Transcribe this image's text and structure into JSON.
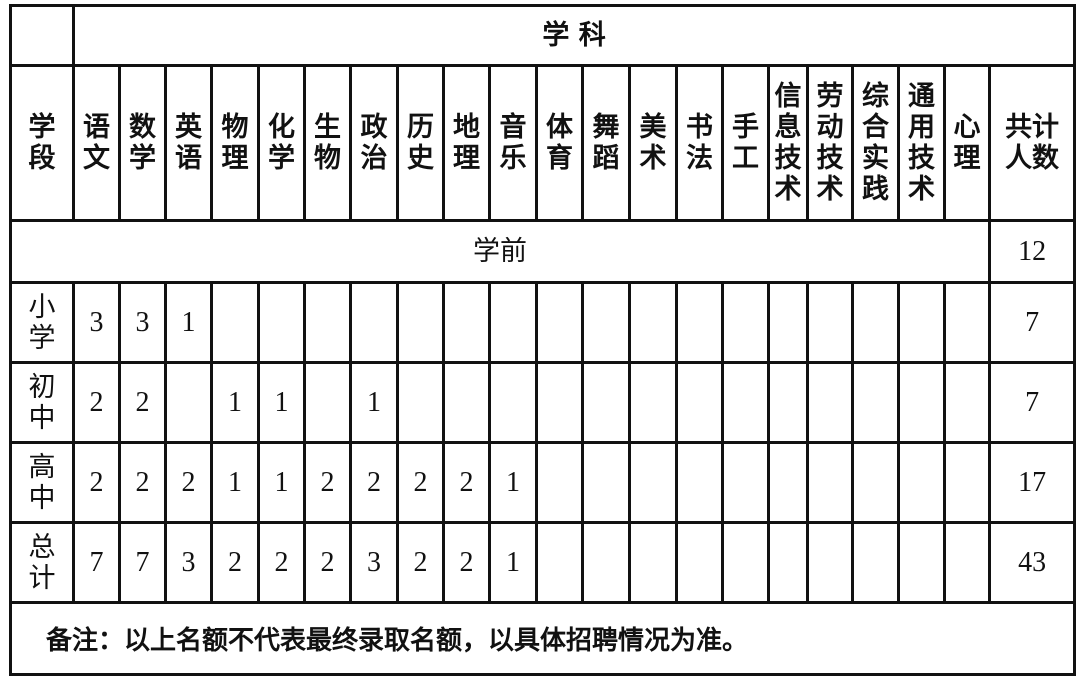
{
  "title": "学 科",
  "stage_header": "学段",
  "total_header": "共计人数",
  "subjects": [
    "语文",
    "数学",
    "英语",
    "物理",
    "化学",
    "生物",
    "政治",
    "历史",
    "地理",
    "音乐",
    "体育",
    "舞蹈",
    "美术",
    "书法",
    "手工",
    "信息技术",
    "劳动技术",
    "综合实践",
    "通用技术",
    "心理"
  ],
  "preschool": {
    "label": "学前",
    "total": "12"
  },
  "rows": [
    {
      "stage": "小学",
      "cells": [
        "3",
        "3",
        "1",
        "",
        "",
        "",
        "",
        "",
        "",
        "",
        "",
        "",
        "",
        "",
        "",
        "",
        "",
        "",
        "",
        ""
      ],
      "total": "7"
    },
    {
      "stage": "初中",
      "cells": [
        "2",
        "2",
        "",
        "1",
        "1",
        "",
        "1",
        "",
        "",
        "",
        "",
        "",
        "",
        "",
        "",
        "",
        "",
        "",
        "",
        ""
      ],
      "total": "7"
    },
    {
      "stage": "高中",
      "cells": [
        "2",
        "2",
        "2",
        "1",
        "1",
        "2",
        "2",
        "2",
        "2",
        "1",
        "",
        "",
        "",
        "",
        "",
        "",
        "",
        "",
        "",
        ""
      ],
      "total": "17"
    },
    {
      "stage": "总计",
      "cells": [
        "7",
        "7",
        "3",
        "2",
        "2",
        "2",
        "3",
        "2",
        "2",
        "1",
        "",
        "",
        "",
        "",
        "",
        "",
        "",
        "",
        "",
        ""
      ],
      "total": "43"
    }
  ],
  "note": "备注：以上名额不代表最终录取名额，以具体招聘情况为准。"
}
